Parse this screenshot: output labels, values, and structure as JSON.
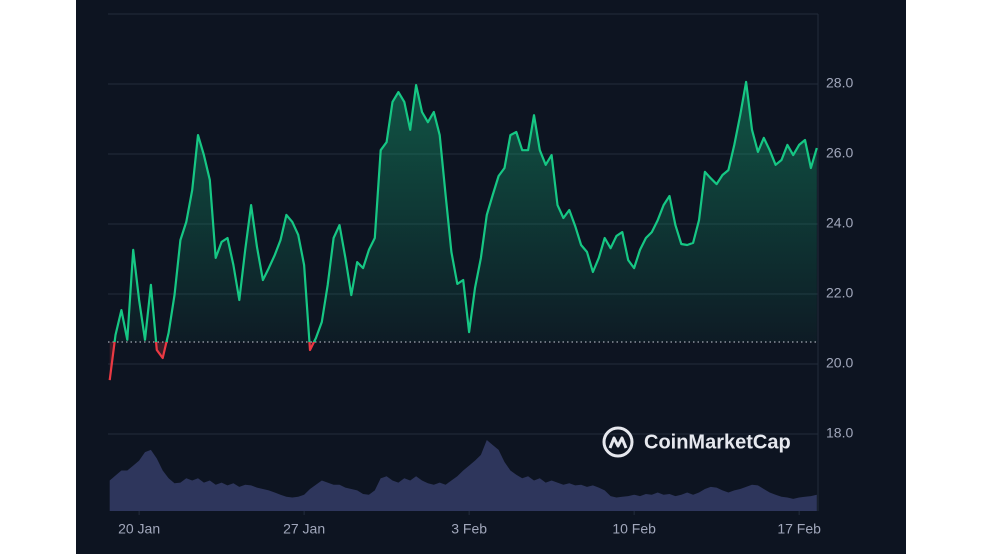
{
  "chart_data": {
    "type": "line",
    "watermark": "CoinMarketCap",
    "baseline": 20.63,
    "up_color": "#16c784",
    "down_color": "#ea3943",
    "volume_color": "#3a4270",
    "xlim": [
      18.68,
      48.8
    ],
    "xticks": [
      {
        "value": 20,
        "label": "20 Jan"
      },
      {
        "value": 27,
        "label": "27 Jan"
      },
      {
        "value": 34,
        "label": "3 Feb"
      },
      {
        "value": 41,
        "label": "10 Feb"
      },
      {
        "value": 48,
        "label": "17 Feb"
      }
    ],
    "ylim": [
      15.8,
      30
    ],
    "yticks": [
      {
        "value": 18,
        "label": "18.0"
      },
      {
        "value": 20,
        "label": "20.0"
      },
      {
        "value": 22,
        "label": "22.0"
      },
      {
        "value": 24,
        "label": "24.0"
      },
      {
        "value": 26,
        "label": "26.0"
      },
      {
        "value": 28,
        "label": "28.0"
      }
    ],
    "y2lim": [
      0,
      100
    ],
    "grid": true,
    "x": [
      18.75,
      19,
      19.25,
      19.5,
      19.75,
      20,
      20.25,
      20.5,
      20.75,
      21,
      21.25,
      21.5,
      21.75,
      22,
      22.25,
      22.5,
      22.75,
      23,
      23.25,
      23.5,
      23.75,
      24,
      24.25,
      24.5,
      24.75,
      25,
      25.25,
      25.5,
      25.75,
      26,
      26.25,
      26.5,
      26.75,
      27,
      27.25,
      27.5,
      27.75,
      28,
      28.25,
      28.5,
      28.75,
      29,
      29.25,
      29.5,
      29.75,
      30,
      30.25,
      30.5,
      30.75,
      31,
      31.25,
      31.5,
      31.75,
      32,
      32.25,
      32.5,
      32.75,
      33,
      33.25,
      33.5,
      33.75,
      34,
      34.25,
      34.5,
      34.75,
      35,
      35.25,
      35.5,
      35.75,
      36,
      36.25,
      36.5,
      36.75,
      37,
      37.25,
      37.5,
      37.75,
      38,
      38.25,
      38.5,
      38.75,
      39,
      39.25,
      39.5,
      39.75,
      40,
      40.25,
      40.5,
      40.75,
      41,
      41.25,
      41.5,
      41.75,
      42,
      42.25,
      42.5,
      42.75,
      43,
      43.25,
      43.5,
      43.75,
      44,
      44.25,
      44.5,
      44.75,
      45,
      45.25,
      45.5,
      45.75,
      46,
      46.25,
      46.5,
      46.75,
      47,
      47.25,
      47.5,
      47.75,
      48,
      48.25,
      48.5,
      48.75
    ],
    "series": [
      {
        "name": "Price",
        "values": [
          19.54,
          20.83,
          21.54,
          20.69,
          23.26,
          21.83,
          20.69,
          22.26,
          20.4,
          20.17,
          20.89,
          21.97,
          23.54,
          24.06,
          24.97,
          26.54,
          25.97,
          25.26,
          23.03,
          23.49,
          23.6,
          22.83,
          21.83,
          23.26,
          24.54,
          23.34,
          22.4,
          22.74,
          23.11,
          23.54,
          24.26,
          24.06,
          23.69,
          22.83,
          20.4,
          20.74,
          21.2,
          22.26,
          23.6,
          23.97,
          23.03,
          21.97,
          22.91,
          22.74,
          23.26,
          23.6,
          26.11,
          26.34,
          27.49,
          27.77,
          27.49,
          26.69,
          27.97,
          27.2,
          26.91,
          27.2,
          26.54,
          24.83,
          23.2,
          22.29,
          22.4,
          20.91,
          22.17,
          23.03,
          24.26,
          24.83,
          25.37,
          25.6,
          26.54,
          26.63,
          26.11,
          26.11,
          27.11,
          26.11,
          25.69,
          25.97,
          24.54,
          24.17,
          24.4,
          23.94,
          23.4,
          23.2,
          22.63,
          23.03,
          23.6,
          23.31,
          23.66,
          23.77,
          22.97,
          22.74,
          23.26,
          23.6,
          23.77,
          24.11,
          24.54,
          24.8,
          23.97,
          23.43,
          23.4,
          23.46,
          24.11,
          25.49,
          25.31,
          25.14,
          25.4,
          25.54,
          26.26,
          27.11,
          28.06,
          26.69,
          26.06,
          26.46,
          26.11,
          25.69,
          25.83,
          26.26,
          25.97,
          26.26,
          26.4,
          25.6,
          26.17
        ]
      },
      {
        "name": "Volume",
        "axis": "y2",
        "values": [
          43,
          50,
          57,
          57,
          64,
          71,
          83,
          86,
          74,
          57,
          46,
          39,
          40,
          46,
          43,
          46,
          40,
          43,
          37,
          40,
          36,
          39,
          34,
          37,
          36,
          33,
          31,
          29,
          26,
          23,
          20,
          19,
          20,
          23,
          31,
          37,
          43,
          40,
          37,
          37,
          33,
          31,
          29,
          24,
          23,
          29,
          46,
          49,
          43,
          40,
          46,
          43,
          49,
          43,
          39,
          37,
          40,
          37,
          43,
          49,
          57,
          64,
          71,
          79,
          100,
          93,
          86,
          69,
          57,
          51,
          46,
          49,
          43,
          46,
          40,
          43,
          40,
          37,
          39,
          36,
          37,
          34,
          36,
          33,
          29,
          21,
          19,
          20,
          21,
          23,
          21,
          24,
          23,
          26,
          23,
          24,
          21,
          23,
          26,
          23,
          26,
          31,
          34,
          33,
          29,
          26,
          29,
          31,
          34,
          37,
          36,
          31,
          26,
          23,
          20,
          19,
          17,
          19,
          20,
          21,
          23
        ]
      }
    ]
  }
}
